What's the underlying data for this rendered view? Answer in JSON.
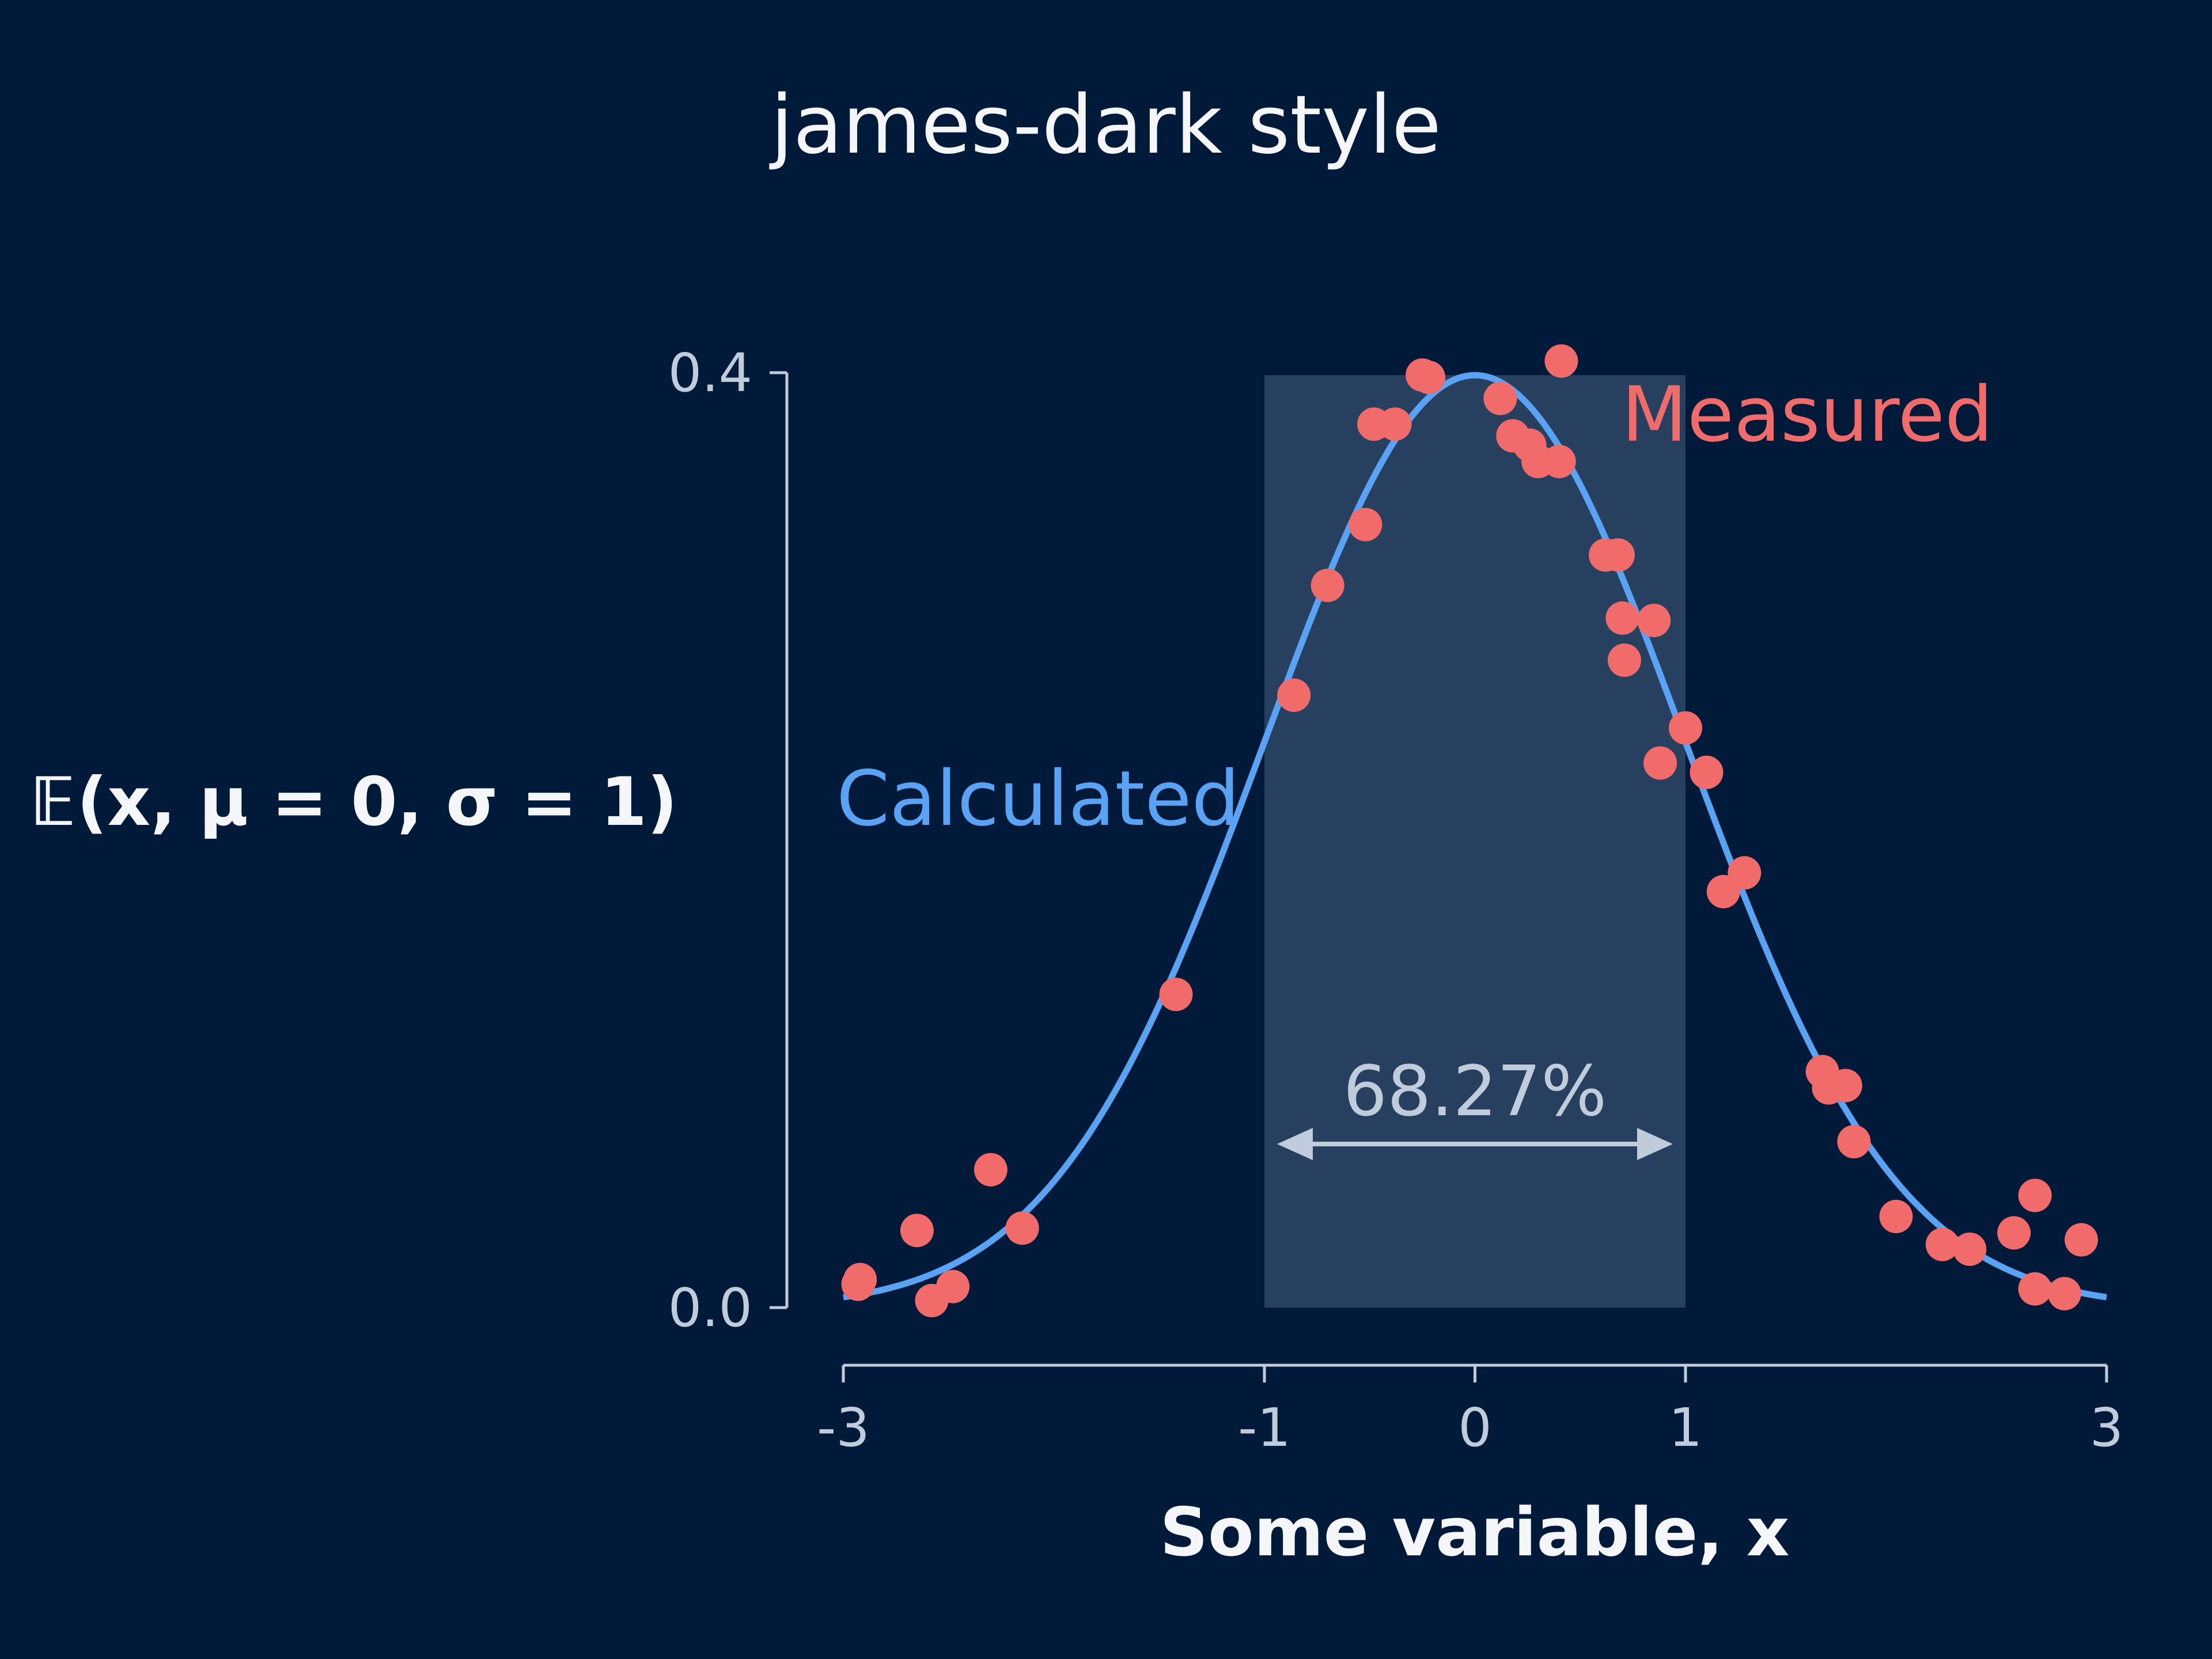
{
  "chart_data": {
    "type": "scatter",
    "title": "james-dark style",
    "xlabel": "Some variable, x",
    "ylabel": "𝔼(x, μ = 0, σ = 1)",
    "xlim": [
      -3,
      3
    ],
    "ylim": [
      0,
      0.4
    ],
    "xticks": [
      {
        "value": -3,
        "label": "-3"
      },
      {
        "value": -1,
        "label": "-1"
      },
      {
        "value": 0,
        "label": "0"
      },
      {
        "value": 1,
        "label": "1"
      },
      {
        "value": 3,
        "label": "3"
      }
    ],
    "yticks": [
      {
        "value": 0,
        "label": "0.0"
      },
      {
        "value": 0.4,
        "label": "0.4"
      }
    ],
    "grid": false,
    "legend": "none",
    "series": [
      {
        "name": "Calculated",
        "kind": "line",
        "function": "normal_pdf",
        "mu": 0,
        "sigma": 1,
        "color": "#5aa2f4"
      },
      {
        "name": "Measured",
        "kind": "scatter",
        "color": "#f26b6b",
        "points": [
          [
            -2.92,
            0.012
          ],
          [
            -2.93,
            0.01
          ],
          [
            -2.65,
            0.033
          ],
          [
            -2.58,
            0.003
          ],
          [
            -2.48,
            0.009
          ],
          [
            -2.3,
            0.059
          ],
          [
            -2.15,
            0.034
          ],
          [
            -1.42,
            0.134
          ],
          [
            -0.86,
            0.262
          ],
          [
            -0.7,
            0.309
          ],
          [
            -0.52,
            0.335
          ],
          [
            -0.48,
            0.378
          ],
          [
            -0.38,
            0.378
          ],
          [
            -0.25,
            0.399
          ],
          [
            -0.22,
            0.398
          ],
          [
            0.12,
            0.389
          ],
          [
            0.18,
            0.373
          ],
          [
            0.26,
            0.369
          ],
          [
            0.3,
            0.362
          ],
          [
            0.4,
            0.362
          ],
          [
            0.41,
            0.405
          ],
          [
            0.62,
            0.322
          ],
          [
            0.68,
            0.322
          ],
          [
            0.7,
            0.295
          ],
          [
            0.71,
            0.277
          ],
          [
            0.85,
            0.294
          ],
          [
            0.88,
            0.233
          ],
          [
            1.0,
            0.248
          ],
          [
            1.1,
            0.229
          ],
          [
            1.18,
            0.178
          ],
          [
            1.28,
            0.186
          ],
          [
            1.65,
            0.101
          ],
          [
            1.68,
            0.094
          ],
          [
            1.76,
            0.095
          ],
          [
            1.8,
            0.071
          ],
          [
            2.0,
            0.039
          ],
          [
            2.22,
            0.027
          ],
          [
            2.35,
            0.025
          ],
          [
            2.56,
            0.032
          ],
          [
            2.66,
            0.048
          ],
          [
            2.66,
            0.008
          ],
          [
            2.8,
            0.006
          ],
          [
            2.88,
            0.029
          ]
        ]
      }
    ],
    "annotations": [
      {
        "type": "shaded-band",
        "x_range": [
          -1,
          1
        ],
        "color": "#274060",
        "text": "68.27%",
        "arrow_y": 0.07
      }
    ]
  },
  "labels": {
    "calculated": "Calculated",
    "measured": "Measured"
  },
  "colors": {
    "background": "#021a3a",
    "axis": "#c0ccdc",
    "text": "#f4f6fa",
    "calculated": "#5aa2f4",
    "measured": "#f26b6b",
    "band": "#274060"
  }
}
